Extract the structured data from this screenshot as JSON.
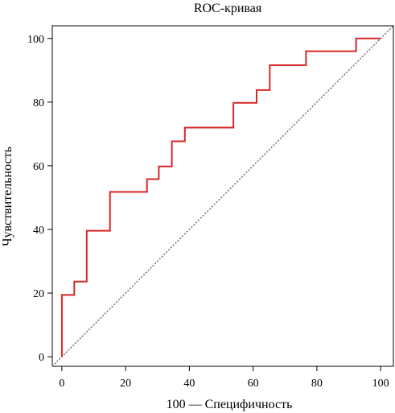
{
  "chart_data": {
    "type": "line",
    "title": "ROC-кривая",
    "xlabel": "100 — Специфичность",
    "ylabel": "Чувствительность",
    "xlim": [
      -3,
      104
    ],
    "ylim": [
      -3,
      104
    ],
    "xticks": [
      0,
      20,
      40,
      60,
      80,
      100
    ],
    "yticks": [
      0,
      20,
      40,
      60,
      80,
      100
    ],
    "xtick_labels": [
      "0",
      "20",
      "40",
      "60",
      "80",
      "100"
    ],
    "ytick_labels": [
      "0",
      "20",
      "40",
      "60",
      "80",
      "100"
    ],
    "grid": false,
    "series": [
      {
        "style": "step",
        "color": "#d62728",
        "x": [
          0,
          0,
          3.9,
          3.9,
          7.8,
          7.8,
          15.1,
          15.1,
          26.7,
          26.7,
          30.4,
          30.4,
          34.5,
          34.5,
          38.6,
          38.6,
          53.8,
          53.8,
          61.1,
          61.1,
          65.2,
          65.2,
          76.6,
          76.6,
          92.3,
          92.3,
          100
        ],
        "y": [
          0,
          19.4,
          19.4,
          23.6,
          23.6,
          39.6,
          39.6,
          51.8,
          51.8,
          55.8,
          55.8,
          59.8,
          59.8,
          67.7,
          67.7,
          72.0,
          72.0,
          79.8,
          79.8,
          83.8,
          83.8,
          91.6,
          91.6,
          96.0,
          96.0,
          100,
          100
        ]
      },
      {
        "style": "dotted",
        "color": "#777777",
        "x": [
          -3,
          104
        ],
        "y": [
          -3,
          104
        ]
      }
    ]
  }
}
